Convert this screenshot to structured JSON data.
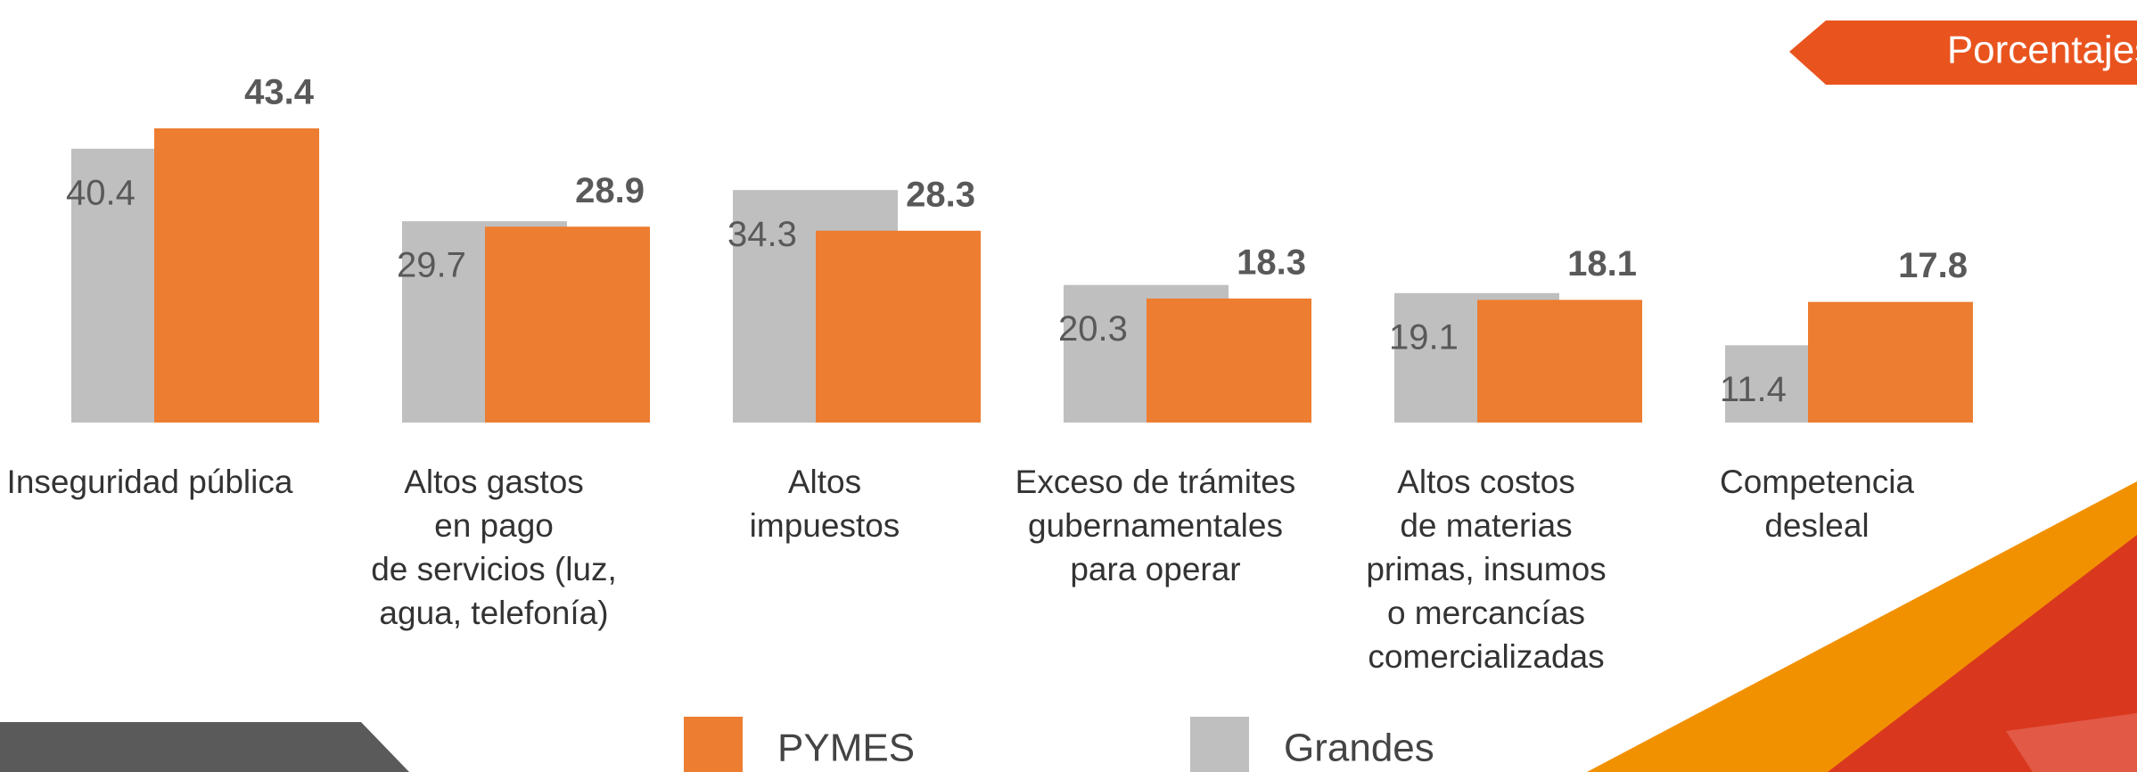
{
  "chart_data": {
    "type": "bar",
    "badge": "Porcentajes",
    "categories": [
      "Inseguridad pública",
      "Altos gastos\nen pago\nde servicios (luz,\nagua, telefonía)",
      "Altos\nimpuestos",
      "Exceso de trámites\ngubernamentales\npara operar",
      "Altos costos\nde materias\nprimas, insumos\no mercancías\ncomercializadas",
      "Competencia\ndesleal"
    ],
    "series": [
      {
        "name": "PYMES",
        "color": "#ED7D31",
        "values": [
          43.4,
          28.9,
          28.3,
          18.3,
          18.1,
          17.8
        ]
      },
      {
        "name": "Grandes",
        "color": "#BFBFBF",
        "values": [
          40.4,
          29.7,
          34.3,
          20.3,
          19.1,
          11.4
        ]
      }
    ]
  }
}
